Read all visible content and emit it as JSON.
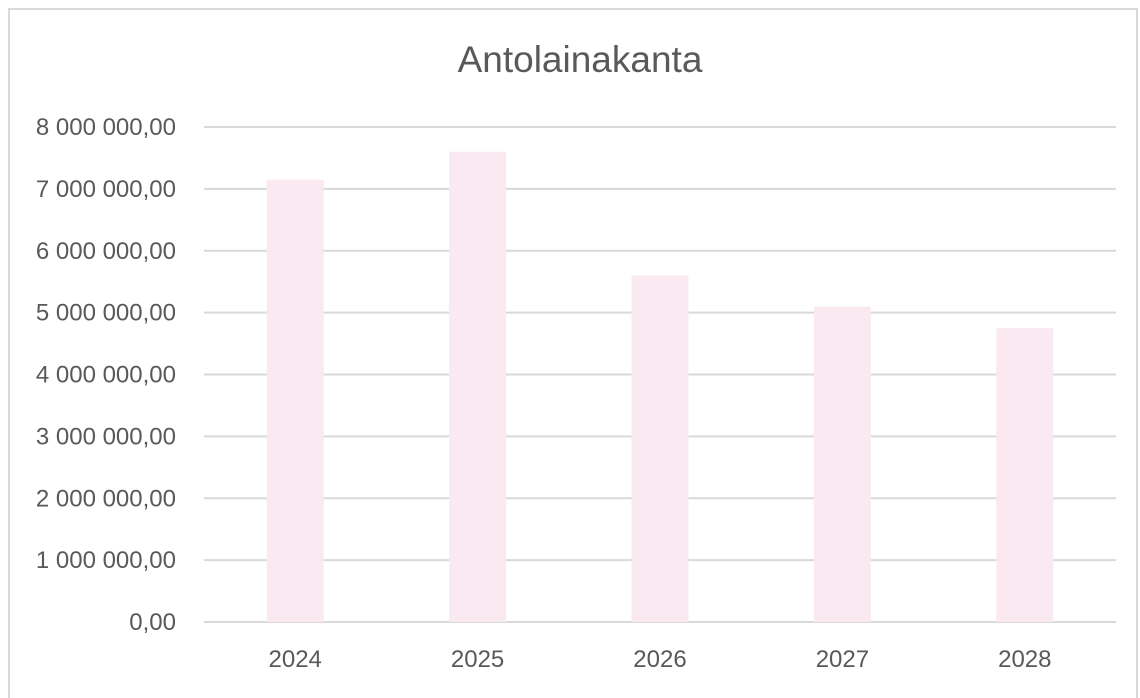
{
  "chart_data": {
    "type": "bar",
    "title": "Antolainakanta",
    "categories": [
      "2024",
      "2025",
      "2026",
      "2027",
      "2028"
    ],
    "values": [
      7150000,
      7600000,
      5600000,
      5100000,
      4750000
    ],
    "yticks": [
      0,
      1000000,
      2000000,
      3000000,
      4000000,
      5000000,
      6000000,
      7000000,
      8000000
    ],
    "ytick_labels": [
      "0,00",
      "1 000 000,00",
      "2 000 000,00",
      "3 000 000,00",
      "4 000 000,00",
      "5 000 000,00",
      "6 000 000,00",
      "7 000 000,00",
      "8 000 000,00"
    ],
    "ylim": [
      0,
      8000000
    ],
    "xlabel": "",
    "ylabel": "",
    "grid": true,
    "legend": "none",
    "bar_color": "#fbe9f2",
    "gridline_color": "#d9d9d9",
    "text_color": "#595959"
  }
}
